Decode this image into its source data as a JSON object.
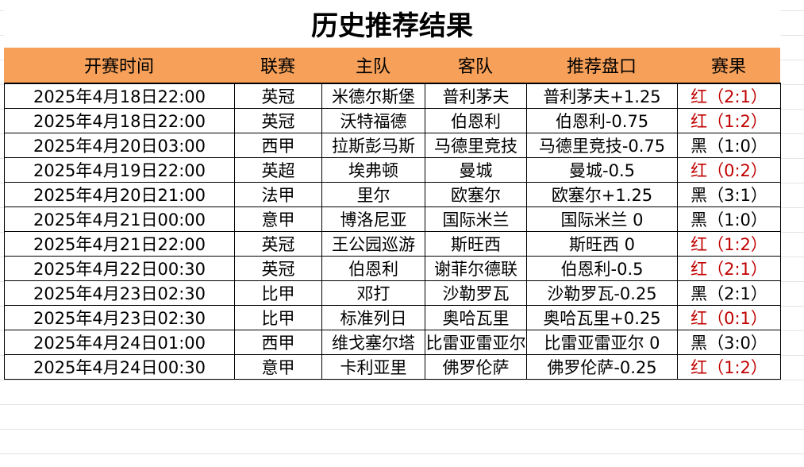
{
  "title": "历史推荐结果",
  "table": {
    "header": [
      "开赛时间",
      "联赛",
      "主队",
      "客队",
      "推荐盘口",
      "赛果"
    ],
    "rows": [
      [
        "2025年4月18日22:00",
        "英冠",
        "米德尔斯堡",
        "普利茅夫",
        "普利茅夫+1.25",
        "红（2:1）"
      ],
      [
        "2025年4月18日22:00",
        "英冠",
        "沃特福德",
        "伯恩利",
        "伯恩利-0.75",
        "红（1:2）"
      ],
      [
        "2025年4月20日03:00",
        "西甲",
        "拉斯彭马斯",
        "马德里竞技",
        "马德里竞技-0.75",
        "黑（1:0）"
      ],
      [
        "2025年4月19日22:00",
        "英超",
        "埃弗顿",
        "曼城",
        "曼城-0.5",
        "红（0:2）"
      ],
      [
        "2025年4月20日21:00",
        "法甲",
        "里尔",
        "欧塞尔",
        "欧塞尔+1.25",
        "黑（3:1）"
      ],
      [
        "2025年4月21日00:00",
        "意甲",
        "博洛尼亚",
        "国际米兰",
        "国际米兰 0",
        "黑（1:0）"
      ],
      [
        "2025年4月21日22:00",
        "英冠",
        "王公园巡游",
        "斯旺西",
        "斯旺西 0",
        "红（1:2）"
      ],
      [
        "2025年4月22日00:30",
        "英冠",
        "伯恩利",
        "谢菲尔德联",
        "伯恩利-0.5",
        "红（2:1）"
      ],
      [
        "2025年4月23日02:30",
        "比甲",
        "邓打",
        "沙勒罗瓦",
        "沙勒罗瓦-0.25",
        "黑（2:1）"
      ],
      [
        "2025年4月23日02:30",
        "比甲",
        "标准列日",
        "奥哈瓦里",
        "奥哈瓦里+0.25",
        "红（0:1）"
      ],
      [
        "2025年4月24日01:00",
        "西甲",
        "维戈塞尔塔",
        "比雷亚雷亚尔",
        "比雷亚雷亚尔 0",
        "黑（3:0）"
      ],
      [
        "2025年4月24日00:30",
        "意甲",
        "卡利亚里",
        "佛罗伦萨",
        "佛罗伦萨-0.25",
        "红（1:2）"
      ]
    ],
    "result_colors": [
      "#c00000",
      "#c00000",
      "#000000",
      "#c00000",
      "#000000",
      "#000000",
      "#c00000",
      "#c00000",
      "#000000",
      "#c00000",
      "#000000",
      "#c00000"
    ],
    "header_color": "#f6a05a"
  }
}
